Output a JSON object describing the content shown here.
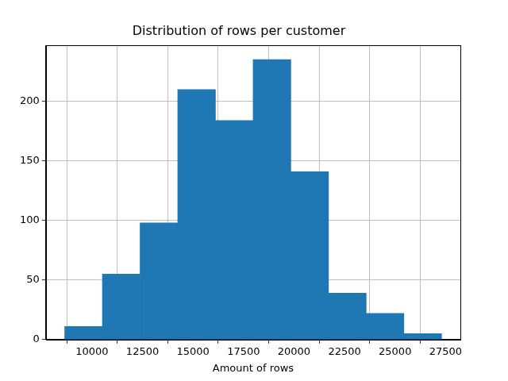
{
  "chart_data": {
    "type": "histogram",
    "title": "Distribution of rows per customer",
    "x_label": "Amount of rows",
    "bins": [
      8650,
      10515,
      12380,
      14245,
      16110,
      17975,
      19840,
      21705,
      23570,
      25435,
      27300
    ],
    "counts": [
      11,
      55,
      98,
      210,
      184,
      235,
      141,
      39,
      22,
      5
    ],
    "color": "#1f77b4",
    "xlim": [
      7718,
      28232
    ],
    "xticks": [
      10000,
      12500,
      15000,
      17500,
      20000,
      22500,
      25000,
      27500
    ],
    "ylim": [
      0,
      247
    ],
    "yticks": [
      0,
      50,
      100,
      150,
      200
    ],
    "grid": true
  }
}
